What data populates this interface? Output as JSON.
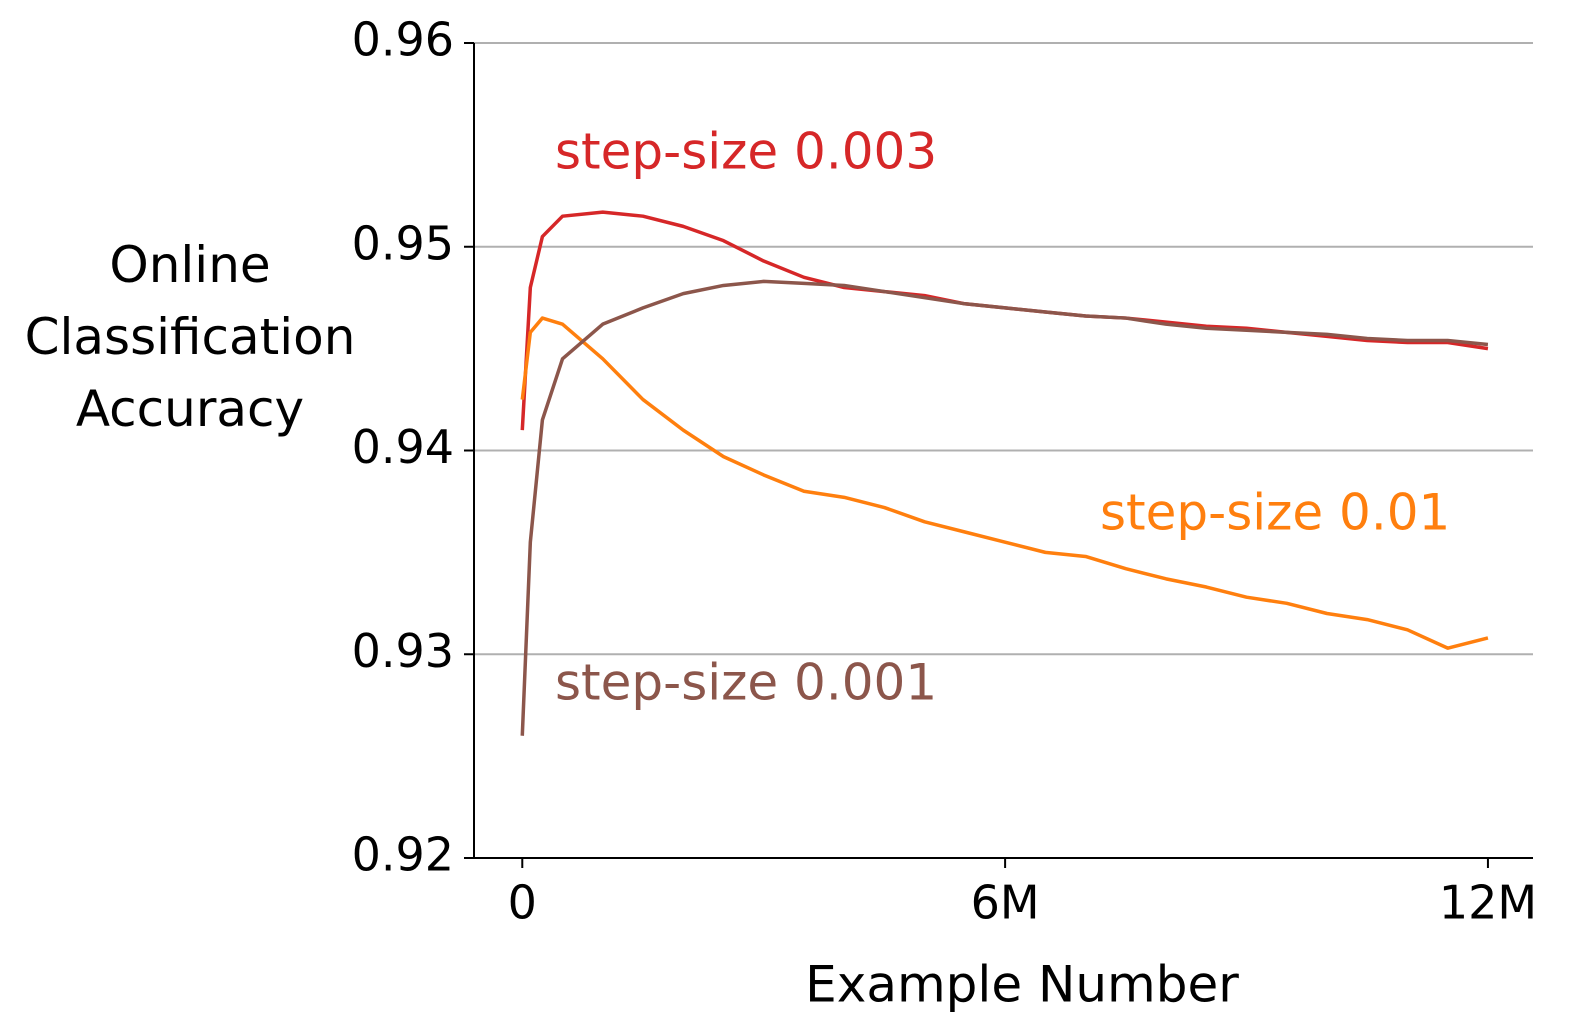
{
  "chart_data": {
    "type": "line",
    "x_label": "Example Number",
    "y_label": "Online Classification Accuracy",
    "x": [
      0,
      100000,
      250000,
      500000,
      1000000,
      1500000,
      2000000,
      2500000,
      3000000,
      3500000,
      4000000,
      4500000,
      5000000,
      5500000,
      6000000,
      6500000,
      7000000,
      7500000,
      8000000,
      8500000,
      9000000,
      9500000,
      10000000,
      10500000,
      11000000,
      11500000,
      12000000
    ],
    "series": [
      {
        "name": "step-size 0.003",
        "color": "#d62728",
        "values": [
          0.941,
          0.948,
          0.9505,
          0.9515,
          0.9517,
          0.9515,
          0.951,
          0.9503,
          0.9493,
          0.9485,
          0.948,
          0.9478,
          0.9476,
          0.9472,
          0.947,
          0.9468,
          0.9466,
          0.9465,
          0.9463,
          0.9461,
          0.946,
          0.9458,
          0.9456,
          0.9454,
          0.9453,
          0.9453,
          0.945
        ]
      },
      {
        "name": "step-size 0.01",
        "color": "#ff7f0e",
        "values": [
          0.9425,
          0.9458,
          0.9465,
          0.9462,
          0.9445,
          0.9425,
          0.941,
          0.9397,
          0.9388,
          0.938,
          0.9377,
          0.9372,
          0.9365,
          0.936,
          0.9355,
          0.935,
          0.9348,
          0.9342,
          0.9337,
          0.9333,
          0.9328,
          0.9325,
          0.932,
          0.9317,
          0.9312,
          0.9303,
          0.9308
        ]
      },
      {
        "name": "step-size 0.001",
        "color": "#8c564b",
        "values": [
          0.926,
          0.9355,
          0.9415,
          0.9445,
          0.9462,
          0.947,
          0.9477,
          0.9481,
          0.9483,
          0.9482,
          0.9481,
          0.9478,
          0.9475,
          0.9472,
          0.947,
          0.9468,
          0.9466,
          0.9465,
          0.9462,
          0.946,
          0.9459,
          0.9458,
          0.9457,
          0.9455,
          0.9454,
          0.9454,
          0.9452
        ]
      }
    ],
    "xlim": [
      -600000,
      12560000
    ],
    "xticks": [
      0,
      {
        "value": 6000000,
        "label": "6M"
      },
      {
        "value": 12000000,
        "label": "12M"
      }
    ],
    "ylim": [
      0.92,
      0.96
    ],
    "yticks": [
      0.92,
      0.93,
      0.94,
      0.95,
      0.96
    ],
    "grid": true
  }
}
